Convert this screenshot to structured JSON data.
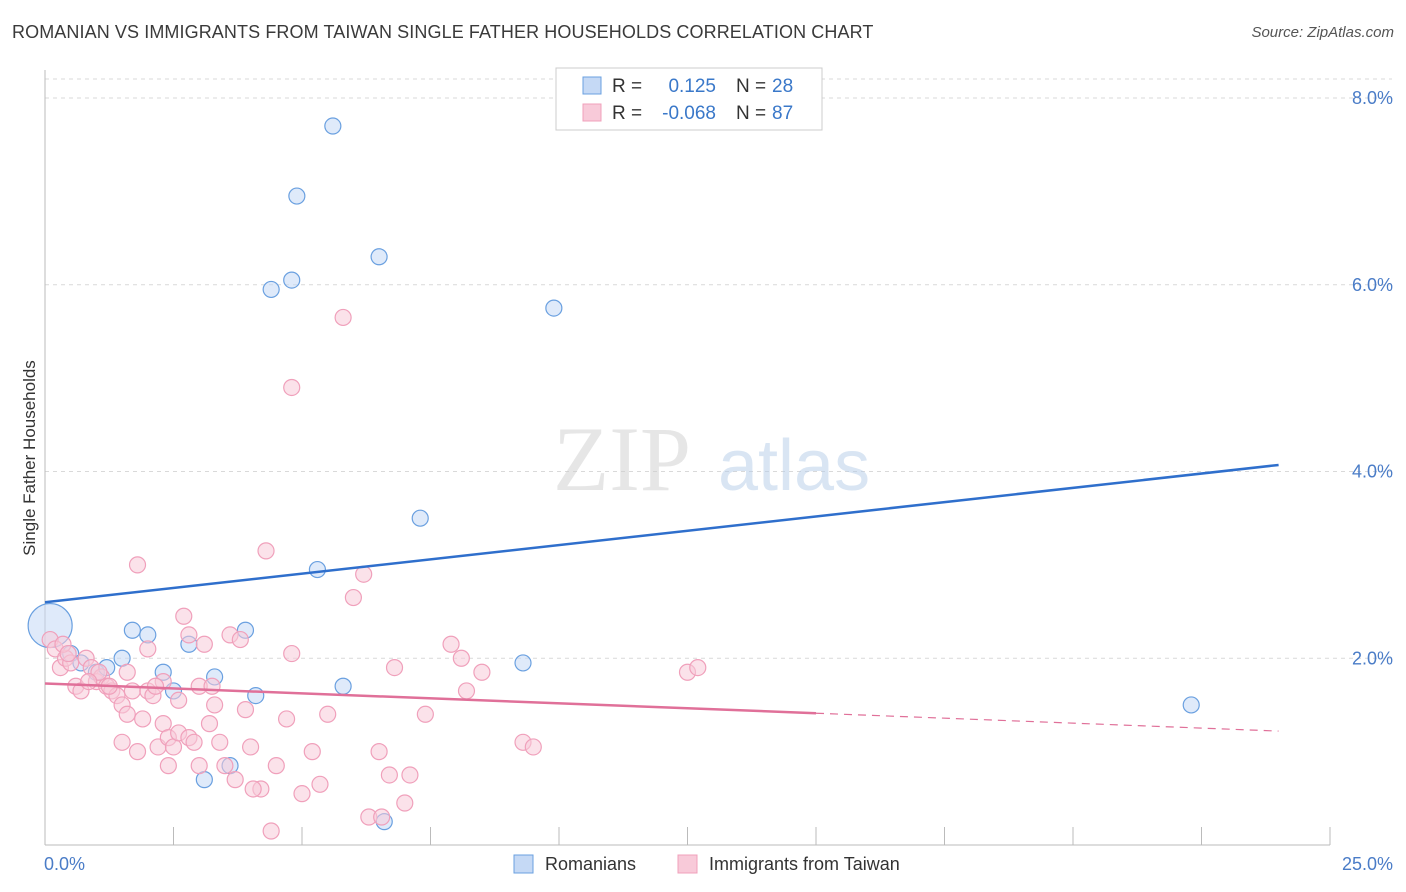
{
  "header": {
    "title": "ROMANIAN VS IMMIGRANTS FROM TAIWAN SINGLE FATHER HOUSEHOLDS CORRELATION CHART",
    "source": "Source: ZipAtlas.com"
  },
  "watermark": {
    "zip": "ZIP",
    "atlas": "atlas"
  },
  "chart_data": {
    "type": "scatter",
    "title": "ROMANIAN VS IMMIGRANTS FROM TAIWAN SINGLE FATHER HOUSEHOLDS CORRELATION CHART",
    "xlabel": "",
    "ylabel": "Single Father Households",
    "xlim": [
      0,
      25
    ],
    "ylim": [
      0,
      8.3
    ],
    "x_tick_labels": [
      "0.0%",
      "25.0%"
    ],
    "y_ticks": [
      2,
      4,
      6,
      8
    ],
    "y_tick_labels": [
      "2.0%",
      "4.0%",
      "6.0%",
      "8.0%"
    ],
    "grid": true,
    "legend_position": "top-center",
    "stats": [
      {
        "r_label": "R =",
        "r": "0.125",
        "n_label": "N =",
        "n": "28"
      },
      {
        "r_label": "R =",
        "r": "-0.068",
        "n_label": "N =",
        "n": "87"
      }
    ],
    "series": [
      {
        "name": "Romanians",
        "color": "#6aa0e0",
        "fill": "#c5d9f5",
        "trend_color": "#2f6fcc",
        "trend": {
          "x": [
            0,
            24.0
          ],
          "y": [
            2.6,
            4.07
          ],
          "dashed_from": null
        },
        "points": [
          [
            0.1,
            2.35
          ],
          [
            0.5,
            2.05
          ],
          [
            0.7,
            1.95
          ],
          [
            1.0,
            1.85
          ],
          [
            1.2,
            1.9
          ],
          [
            1.5,
            2.0
          ],
          [
            1.7,
            2.3
          ],
          [
            2.0,
            2.25
          ],
          [
            2.3,
            1.85
          ],
          [
            2.5,
            1.65
          ],
          [
            2.8,
            2.15
          ],
          [
            3.1,
            0.7
          ],
          [
            3.3,
            1.8
          ],
          [
            3.6,
            0.85
          ],
          [
            3.9,
            2.3
          ],
          [
            4.1,
            1.6
          ],
          [
            4.4,
            5.95
          ],
          [
            4.8,
            6.05
          ],
          [
            4.9,
            6.95
          ],
          [
            5.3,
            2.95
          ],
          [
            5.6,
            7.7
          ],
          [
            5.8,
            1.7
          ],
          [
            6.5,
            6.3
          ],
          [
            6.6,
            0.25
          ],
          [
            7.3,
            3.5
          ],
          [
            9.3,
            1.95
          ],
          [
            9.9,
            5.75
          ],
          [
            22.3,
            1.5
          ]
        ],
        "large_point_index": 0
      },
      {
        "name": "Immigrants from Taiwan",
        "color": "#f0a0bb",
        "fill": "#f8cad9",
        "trend_color": "#e07099",
        "trend": {
          "x": [
            0,
            24.0
          ],
          "y": [
            1.73,
            1.22
          ],
          "dashed_from": 15.0
        },
        "points": [
          [
            0.1,
            2.2
          ],
          [
            0.2,
            2.1
          ],
          [
            0.3,
            1.9
          ],
          [
            0.4,
            2.0
          ],
          [
            0.5,
            1.95
          ],
          [
            0.6,
            1.7
          ],
          [
            0.7,
            1.65
          ],
          [
            0.8,
            2.0
          ],
          [
            0.9,
            1.9
          ],
          [
            1.0,
            1.75
          ],
          [
            1.1,
            1.8
          ],
          [
            1.2,
            1.7
          ],
          [
            1.3,
            1.65
          ],
          [
            1.4,
            1.6
          ],
          [
            1.5,
            1.5
          ],
          [
            1.5,
            1.1
          ],
          [
            1.6,
            1.85
          ],
          [
            1.6,
            1.4
          ],
          [
            1.7,
            1.65
          ],
          [
            1.8,
            1.0
          ],
          [
            1.8,
            3.0
          ],
          [
            1.9,
            1.35
          ],
          [
            2.0,
            2.1
          ],
          [
            2.0,
            1.65
          ],
          [
            2.1,
            1.6
          ],
          [
            2.2,
            1.05
          ],
          [
            2.3,
            1.75
          ],
          [
            2.3,
            1.3
          ],
          [
            2.4,
            1.15
          ],
          [
            2.4,
            0.85
          ],
          [
            2.5,
            1.05
          ],
          [
            2.6,
            1.2
          ],
          [
            2.6,
            1.55
          ],
          [
            2.7,
            2.45
          ],
          [
            2.8,
            1.15
          ],
          [
            2.8,
            2.25
          ],
          [
            2.9,
            1.1
          ],
          [
            3.0,
            1.7
          ],
          [
            3.0,
            0.85
          ],
          [
            3.1,
            2.15
          ],
          [
            3.2,
            1.3
          ],
          [
            3.3,
            1.5
          ],
          [
            3.4,
            1.1
          ],
          [
            3.5,
            0.85
          ],
          [
            3.6,
            2.25
          ],
          [
            3.7,
            0.7
          ],
          [
            3.8,
            2.2
          ],
          [
            3.9,
            1.45
          ],
          [
            4.0,
            1.05
          ],
          [
            4.2,
            0.6
          ],
          [
            4.3,
            3.15
          ],
          [
            4.4,
            0.15
          ],
          [
            4.5,
            0.85
          ],
          [
            4.7,
            1.35
          ],
          [
            4.8,
            2.05
          ],
          [
            4.8,
            4.9
          ],
          [
            5.0,
            0.55
          ],
          [
            5.2,
            1.0
          ],
          [
            5.5,
            1.4
          ],
          [
            5.8,
            5.65
          ],
          [
            6.0,
            2.65
          ],
          [
            6.2,
            2.9
          ],
          [
            6.3,
            0.3
          ],
          [
            6.5,
            1.0
          ],
          [
            6.7,
            0.75
          ],
          [
            6.8,
            1.9
          ],
          [
            7.0,
            0.45
          ],
          [
            7.1,
            0.75
          ],
          [
            7.4,
            1.4
          ],
          [
            7.9,
            2.15
          ],
          [
            8.1,
            2.0
          ],
          [
            8.2,
            1.65
          ],
          [
            8.5,
            1.85
          ],
          [
            9.3,
            1.1
          ],
          [
            9.5,
            1.05
          ],
          [
            12.5,
            1.85
          ],
          [
            12.7,
            1.9
          ],
          [
            0.35,
            2.15
          ],
          [
            1.05,
            1.85
          ],
          [
            1.25,
            1.7
          ],
          [
            2.15,
            1.7
          ],
          [
            3.25,
            1.7
          ],
          [
            4.05,
            0.6
          ],
          [
            5.35,
            0.65
          ],
          [
            6.55,
            0.3
          ],
          [
            0.45,
            2.05
          ],
          [
            0.85,
            1.75
          ]
        ],
        "large_point_index": null
      }
    ]
  }
}
